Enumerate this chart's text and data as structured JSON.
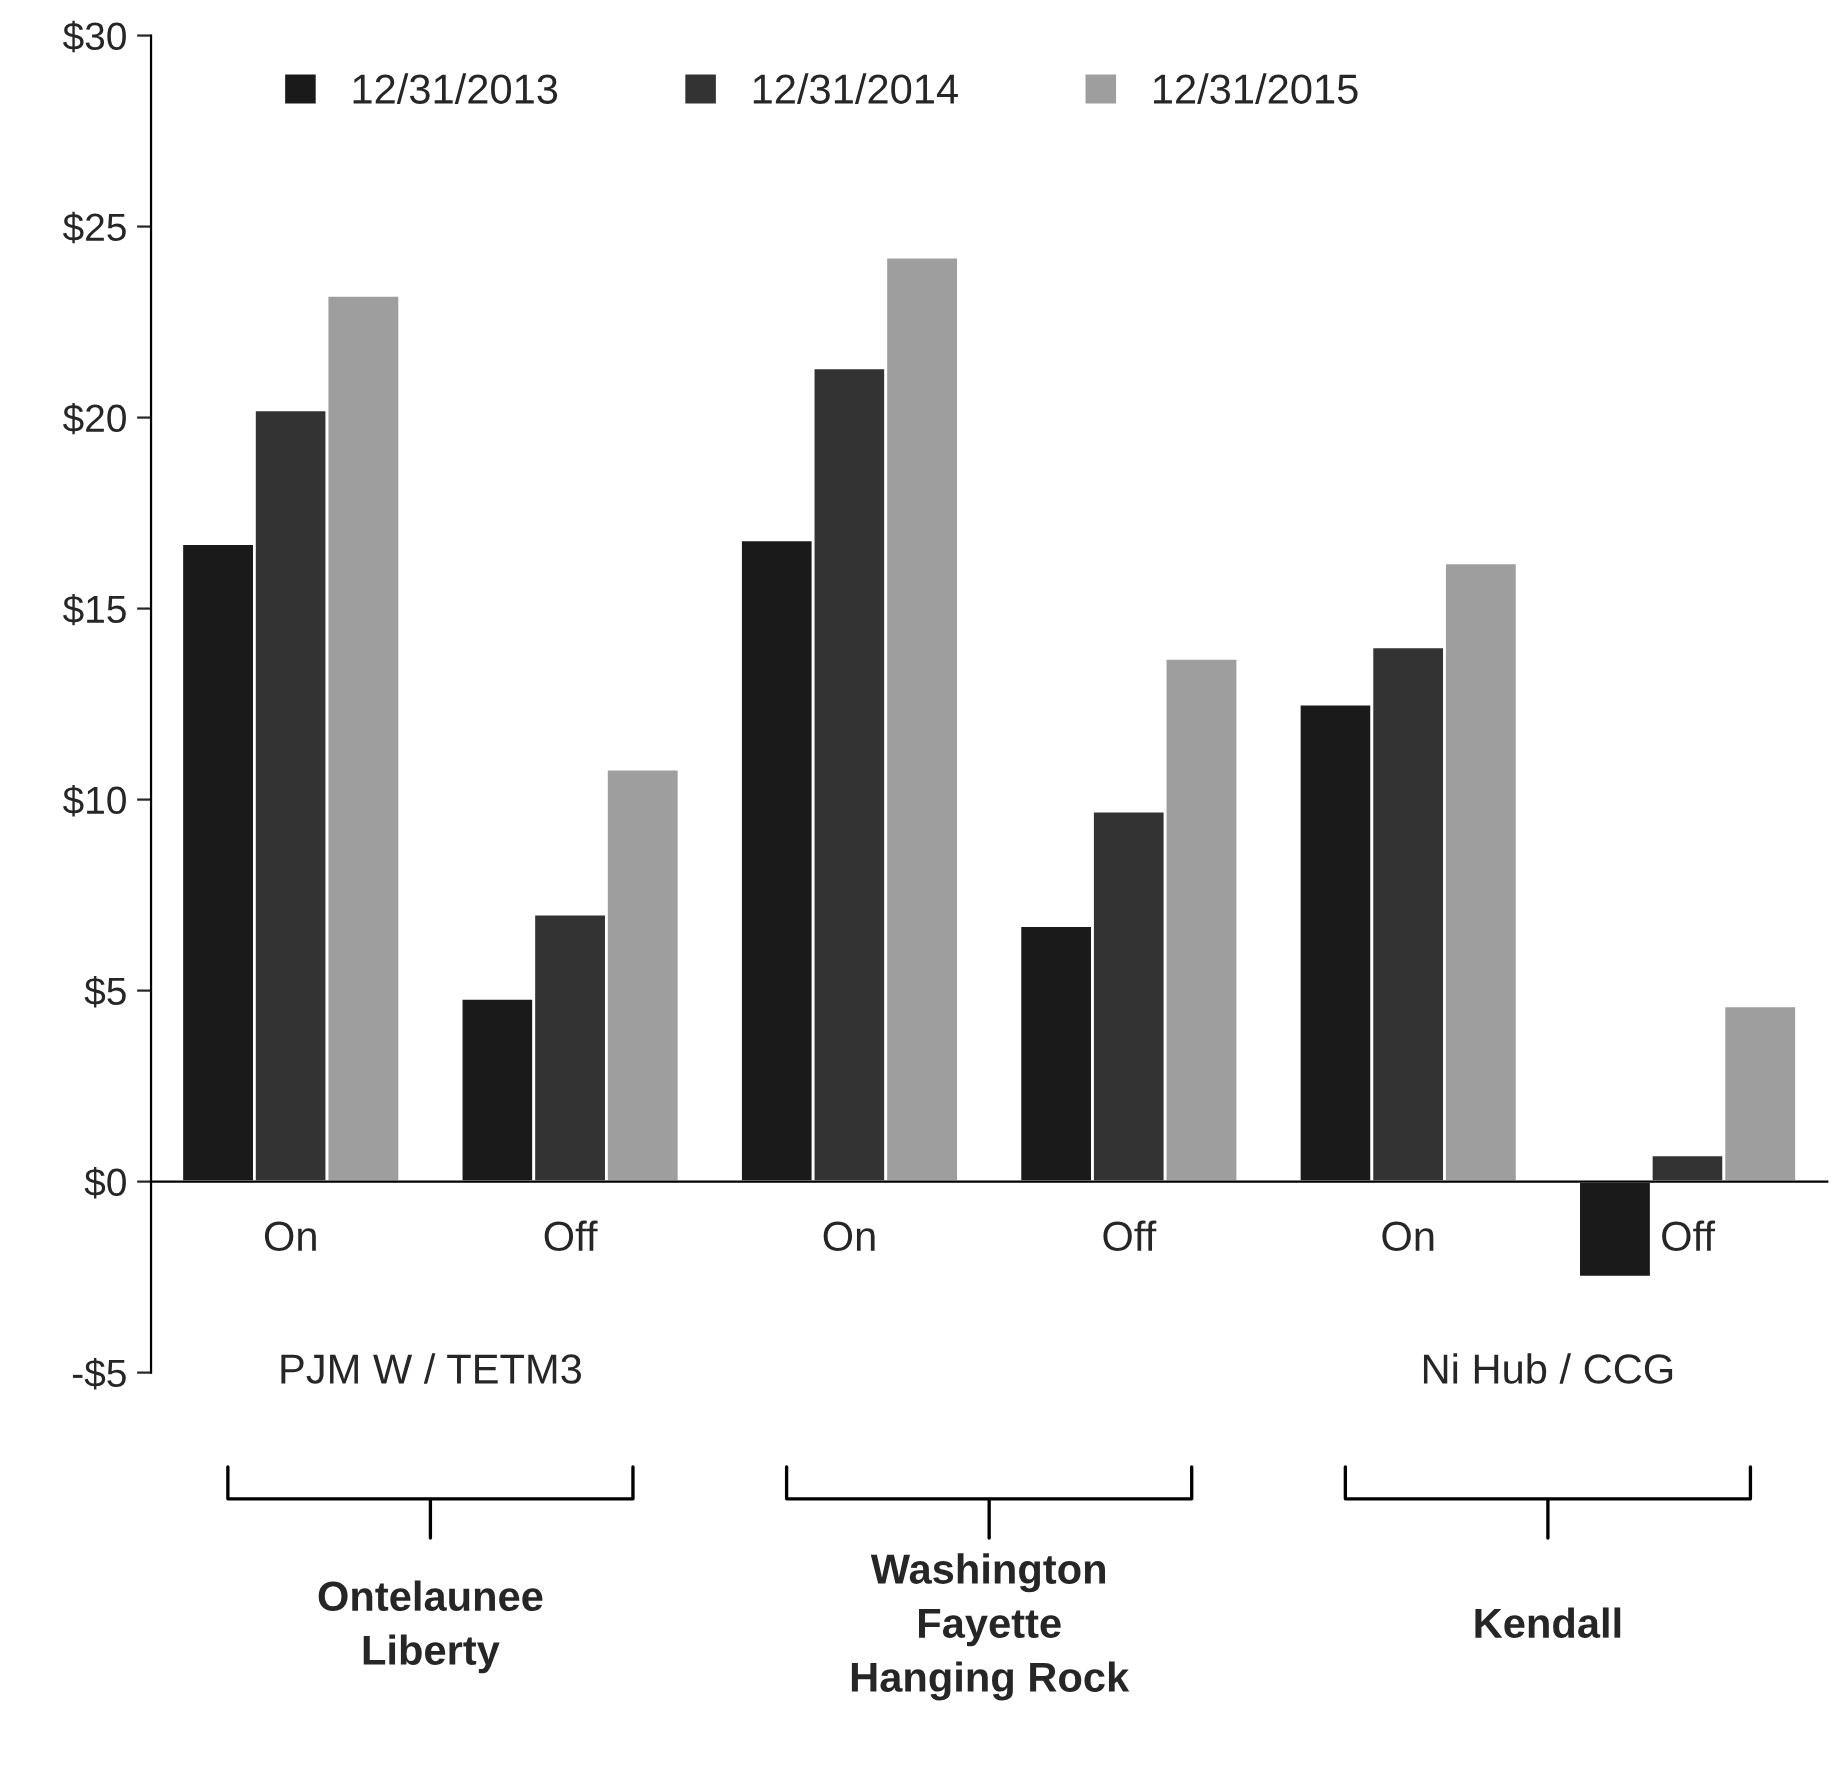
{
  "chart_data": {
    "type": "bar",
    "categories": [
      "On",
      "Off",
      "On",
      "Off",
      "On",
      "Off"
    ],
    "series": [
      {
        "name": "12/31/2013",
        "color": "#1a1a1a",
        "values": [
          16.7,
          4.8,
          16.8,
          6.7,
          12.5,
          -2.5
        ]
      },
      {
        "name": "12/31/2014",
        "color": "#333333",
        "values": [
          20.2,
          7.0,
          21.3,
          9.7,
          14.0,
          0.7
        ]
      },
      {
        "name": "12/31/2015",
        "color": "#9e9e9e",
        "values": [
          23.2,
          10.8,
          24.2,
          13.7,
          16.2,
          4.6
        ]
      }
    ],
    "ylim": [
      -5,
      30
    ],
    "yticks": [
      {
        "value": -5,
        "label": "-$5"
      },
      {
        "value": 0,
        "label": "$0"
      },
      {
        "value": 5,
        "label": "$5"
      },
      {
        "value": 10,
        "label": "$10"
      },
      {
        "value": 15,
        "label": "$15"
      },
      {
        "value": 20,
        "label": "$20"
      },
      {
        "value": 25,
        "label": "$25"
      },
      {
        "value": 30,
        "label": "$30"
      }
    ],
    "legend": "top",
    "grid": false,
    "annotations": [
      "PJM W / TETM3",
      "Ni Hub / CCG",
      "Ontelaunee\nLiberty",
      "Washington\nFayette\nHanging Rock",
      "Kendall"
    ]
  }
}
